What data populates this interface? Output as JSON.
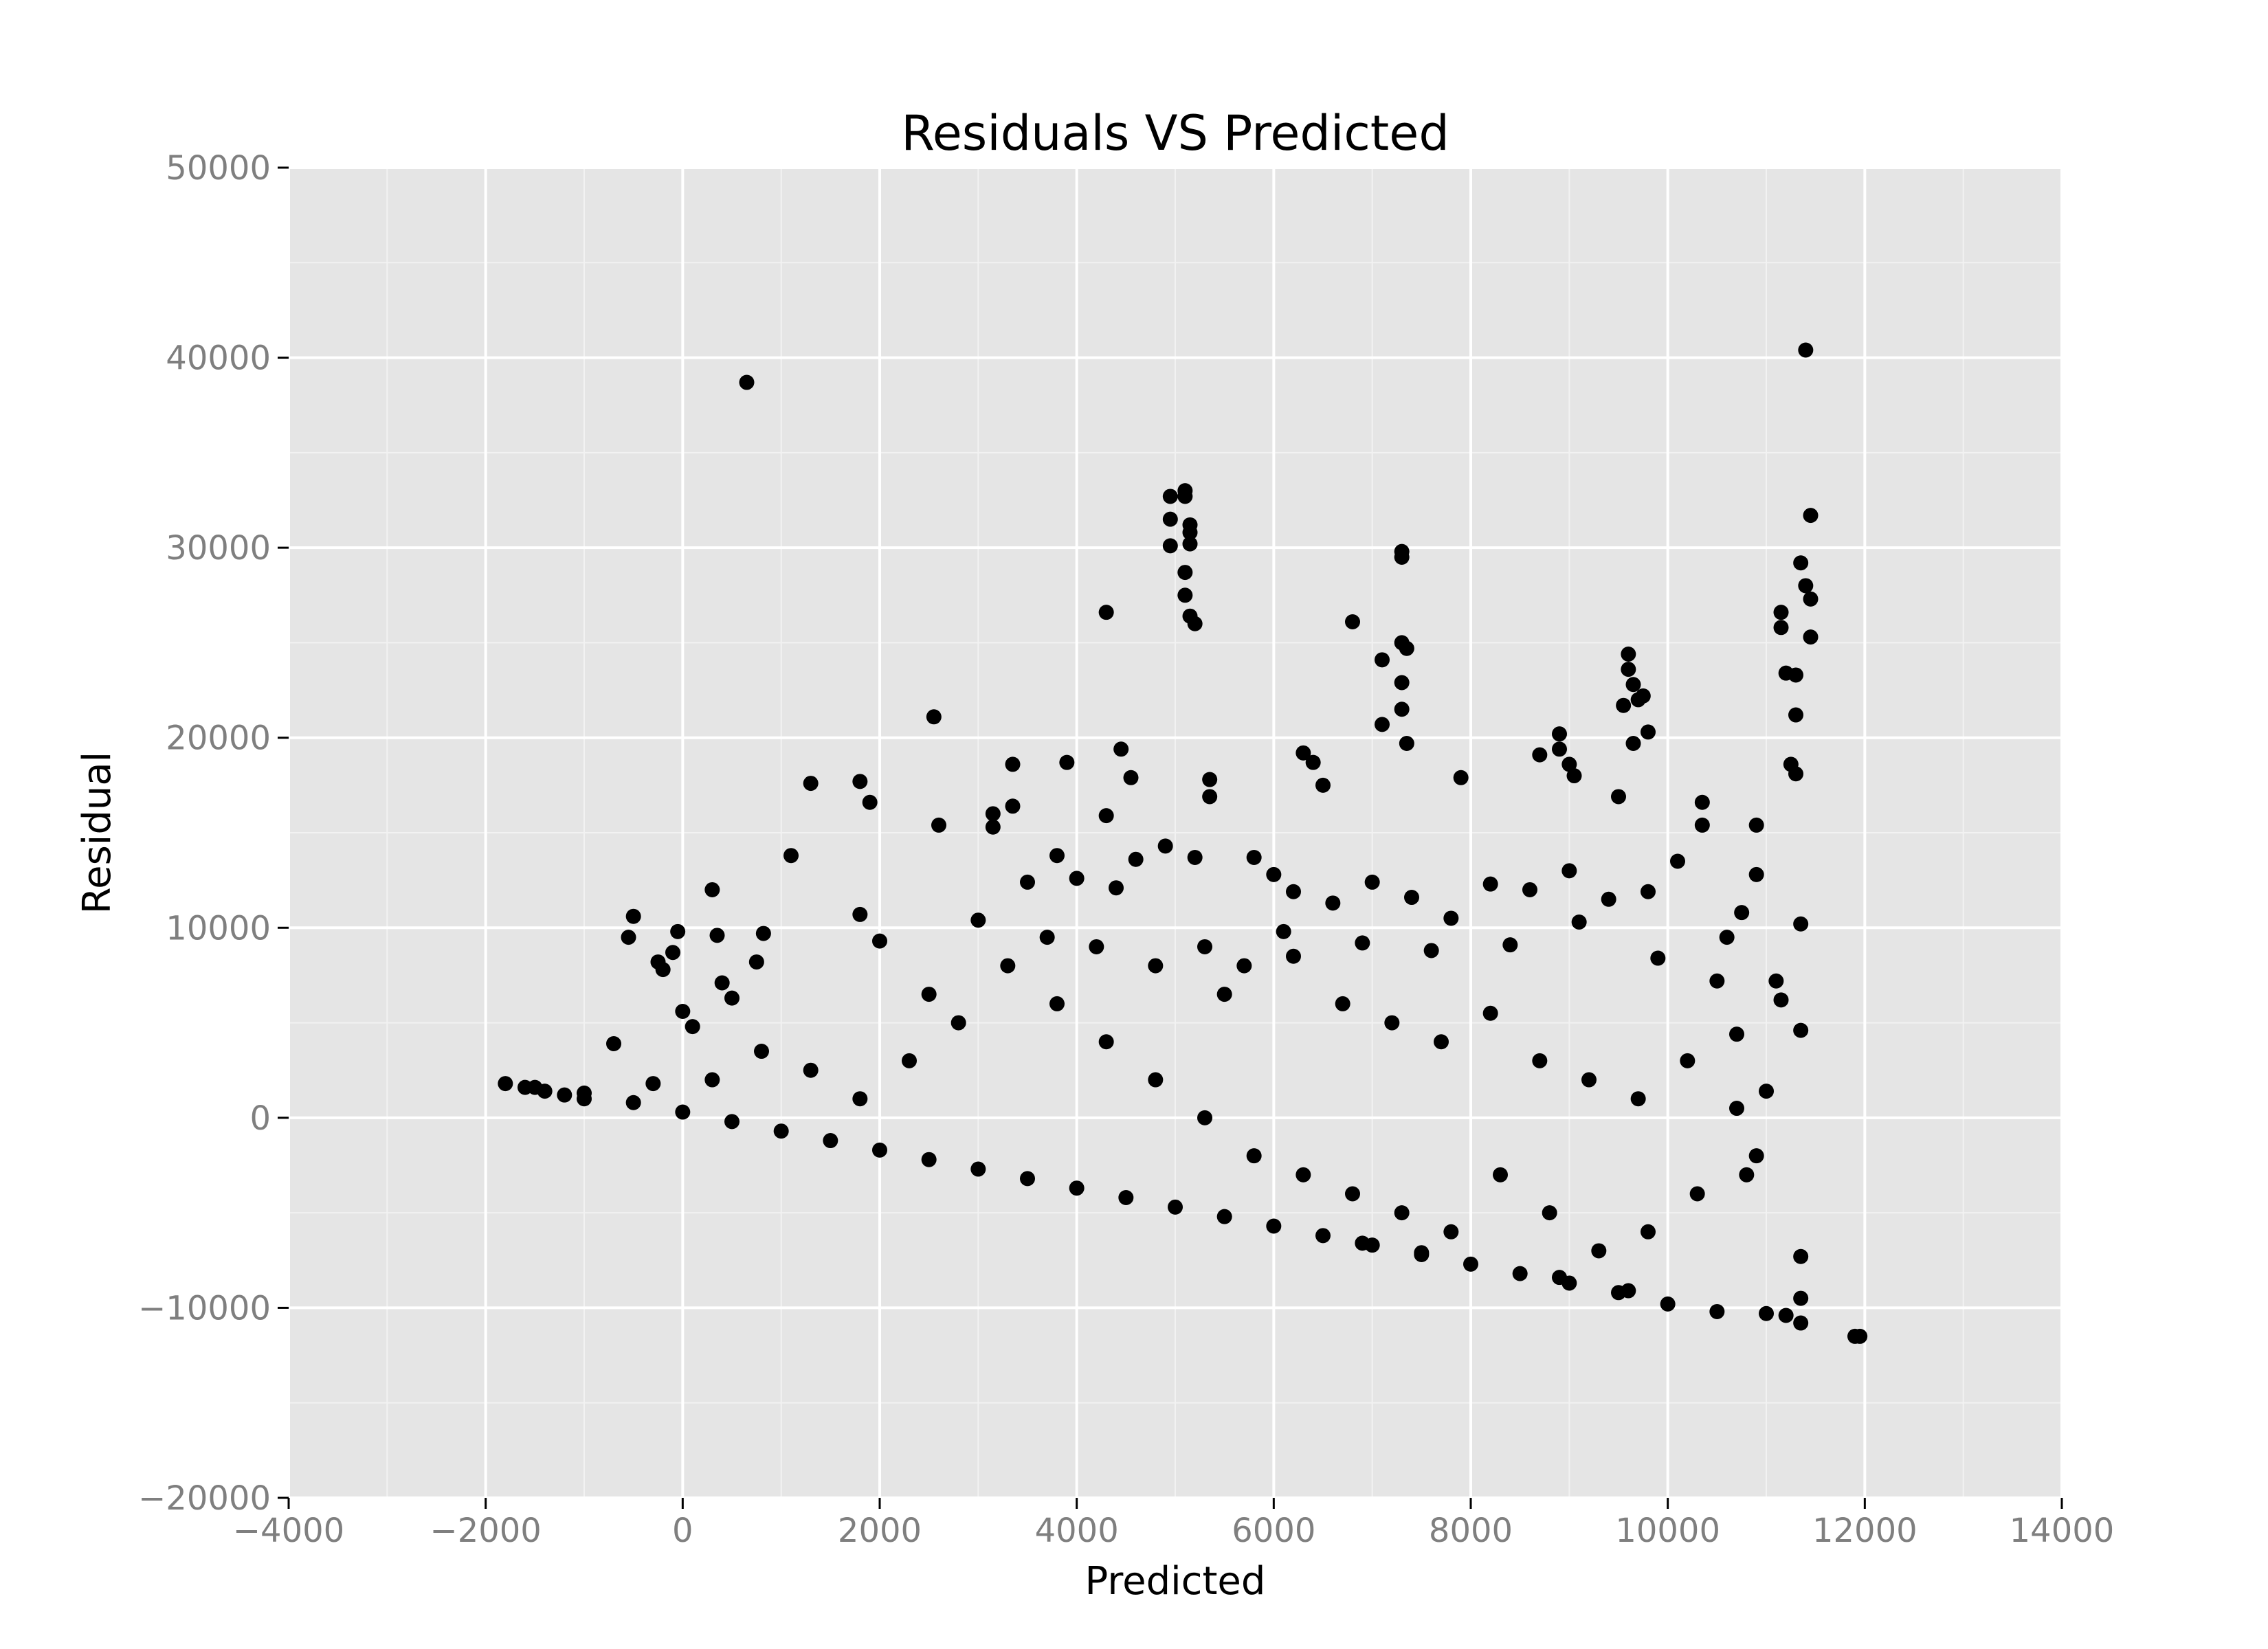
{
  "chart_data": {
    "type": "scatter",
    "title": "Residuals VS Predicted",
    "xlabel": "Predicted",
    "ylabel": "Residual",
    "xlim": [
      -4000,
      14000
    ],
    "ylim": [
      -20000,
      50000
    ],
    "xticks": [
      -4000,
      -2000,
      0,
      2000,
      4000,
      6000,
      8000,
      10000,
      12000,
      14000
    ],
    "yticks": [
      -20000,
      -10000,
      0,
      10000,
      20000,
      30000,
      40000,
      50000
    ],
    "xtick_labels": [
      "−4000",
      "−2000",
      "0",
      "2000",
      "4000",
      "6000",
      "8000",
      "10000",
      "12000",
      "14000"
    ],
    "ytick_labels": [
      "−20000",
      "−10000",
      "0",
      "10000",
      "20000",
      "30000",
      "40000",
      "50000"
    ],
    "grid": true,
    "legend": "none",
    "colors": {
      "panel": "#e5e5e5",
      "grid": "#ffffff",
      "points": "#000000",
      "tick_text": "#7f7f7f"
    },
    "points": [
      [
        -1800,
        1800
      ],
      [
        -1600,
        1600
      ],
      [
        -1400,
        1400
      ],
      [
        -1200,
        1200
      ],
      [
        -1000,
        1000
      ],
      [
        -700,
        3900
      ],
      [
        -500,
        10600
      ],
      [
        -550,
        9500
      ],
      [
        -250,
        8200
      ],
      [
        -200,
        7800
      ],
      [
        -100,
        8700
      ],
      [
        -50,
        9800
      ],
      [
        0,
        5600
      ],
      [
        100,
        4800
      ],
      [
        300,
        12000
      ],
      [
        350,
        9600
      ],
      [
        400,
        7100
      ],
      [
        500,
        6300
      ],
      [
        650,
        38700
      ],
      [
        750,
        8200
      ],
      [
        820,
        9700
      ],
      [
        1100,
        13800
      ],
      [
        1300,
        17600
      ],
      [
        1800,
        17700
      ],
      [
        1900,
        16600
      ],
      [
        1800,
        10700
      ],
      [
        2000,
        9300
      ],
      [
        2550,
        21100
      ],
      [
        2600,
        15400
      ],
      [
        3150,
        16000
      ],
      [
        3150,
        15300
      ],
      [
        3350,
        18600
      ],
      [
        3350,
        16400
      ],
      [
        3900,
        18700
      ],
      [
        4300,
        26600
      ],
      [
        4300,
        15900
      ],
      [
        4450,
        19400
      ],
      [
        4550,
        17900
      ],
      [
        4950,
        32700
      ],
      [
        4950,
        31500
      ],
      [
        4950,
        30100
      ],
      [
        5100,
        33000
      ],
      [
        5100,
        32700
      ],
      [
        5100,
        28700
      ],
      [
        5100,
        27500
      ],
      [
        5150,
        31200
      ],
      [
        5150,
        30800
      ],
      [
        5150,
        30200
      ],
      [
        5150,
        26400
      ],
      [
        5200,
        26000
      ],
      [
        5350,
        17800
      ],
      [
        5350,
        16900
      ],
      [
        6300,
        19200
      ],
      [
        6400,
        18700
      ],
      [
        6500,
        17500
      ],
      [
        6800,
        26100
      ],
      [
        7100,
        24100
      ],
      [
        7100,
        20700
      ],
      [
        7300,
        29800
      ],
      [
        7300,
        29500
      ],
      [
        7300,
        25000
      ],
      [
        7350,
        24700
      ],
      [
        7300,
        22900
      ],
      [
        7300,
        21500
      ],
      [
        7350,
        19700
      ],
      [
        7900,
        17900
      ],
      [
        8900,
        20200
      ],
      [
        8900,
        19400
      ],
      [
        8700,
        19100
      ],
      [
        9000,
        18600
      ],
      [
        9050,
        18000
      ],
      [
        9600,
        24400
      ],
      [
        9600,
        23600
      ],
      [
        9650,
        22800
      ],
      [
        9700,
        22000
      ],
      [
        9550,
        21700
      ],
      [
        9750,
        22200
      ],
      [
        9800,
        20300
      ],
      [
        9650,
        19700
      ],
      [
        9500,
        16900
      ],
      [
        11400,
        40400
      ],
      [
        11450,
        31700
      ],
      [
        11350,
        29200
      ],
      [
        11400,
        28000
      ],
      [
        11450,
        27300
      ],
      [
        11450,
        25300
      ],
      [
        11150,
        26600
      ],
      [
        11150,
        25800
      ],
      [
        11200,
        23400
      ],
      [
        11300,
        23300
      ],
      [
        11300,
        21200
      ],
      [
        11250,
        18600
      ],
      [
        11300,
        18100
      ],
      [
        11350,
        10200
      ],
      [
        11350,
        4600
      ],
      [
        11100,
        7200
      ],
      [
        11150,
        6200
      ],
      [
        11000,
        1400
      ],
      [
        11350,
        -7300
      ],
      [
        11900,
        -11500
      ],
      [
        11950,
        -11500
      ],
      [
        11000,
        -10300
      ],
      [
        11200,
        -10400
      ],
      [
        11350,
        -9500
      ],
      [
        11350,
        -10800
      ],
      [
        10500,
        -10200
      ],
      [
        10000,
        -9800
      ],
      [
        9500,
        -9200
      ],
      [
        9000,
        -8700
      ],
      [
        8500,
        -8200
      ],
      [
        8000,
        -7700
      ],
      [
        7500,
        -7200
      ],
      [
        7000,
        -6700
      ],
      [
        6500,
        -6200
      ],
      [
        6000,
        -5700
      ],
      [
        5500,
        -5200
      ],
      [
        5000,
        -4700
      ],
      [
        4500,
        -4200
      ],
      [
        4000,
        -3700
      ],
      [
        3500,
        -3200
      ],
      [
        3000,
        -2700
      ],
      [
        2500,
        -2200
      ],
      [
        2000,
        -1700
      ],
      [
        1500,
        -1200
      ],
      [
        1000,
        -700
      ],
      [
        500,
        -200
      ],
      [
        0,
        300
      ],
      [
        -500,
        800
      ],
      [
        -1000,
        1300
      ],
      [
        -1500,
        1600
      ],
      [
        3000,
        10400
      ],
      [
        3500,
        12400
      ],
      [
        3800,
        13800
      ],
      [
        4000,
        12600
      ],
      [
        4400,
        12100
      ],
      [
        4600,
        13600
      ],
      [
        4900,
        14300
      ],
      [
        5200,
        13700
      ],
      [
        5800,
        13700
      ],
      [
        6000,
        12800
      ],
      [
        6200,
        11900
      ],
      [
        6600,
        11300
      ],
      [
        7000,
        12400
      ],
      [
        7400,
        11600
      ],
      [
        7800,
        10500
      ],
      [
        8200,
        12300
      ],
      [
        8600,
        12000
      ],
      [
        9000,
        13000
      ],
      [
        9400,
        11500
      ],
      [
        9800,
        11900
      ],
      [
        10100,
        13500
      ],
      [
        10350,
        16600
      ],
      [
        10350,
        15400
      ],
      [
        10600,
        9500
      ],
      [
        10900,
        15400
      ],
      [
        10900,
        12800
      ],
      [
        10750,
        10800
      ],
      [
        5300,
        9000
      ],
      [
        5700,
        8000
      ],
      [
        6200,
        8500
      ],
      [
        6700,
        6000
      ],
      [
        7200,
        5000
      ],
      [
        7700,
        4000
      ],
      [
        8200,
        5500
      ],
      [
        8700,
        3000
      ],
      [
        9200,
        2000
      ],
      [
        9700,
        1000
      ],
      [
        10200,
        3000
      ],
      [
        10700,
        500
      ],
      [
        10900,
        -2000
      ],
      [
        10300,
        -4000
      ],
      [
        9800,
        -6000
      ],
      [
        9300,
        -7000
      ],
      [
        8800,
        -5000
      ],
      [
        8300,
        -3000
      ],
      [
        7800,
        -6000
      ],
      [
        7300,
        -5000
      ],
      [
        6800,
        -4000
      ],
      [
        6300,
        -3000
      ],
      [
        5800,
        -2000
      ],
      [
        5300,
        0
      ],
      [
        4800,
        2000
      ],
      [
        4300,
        4000
      ],
      [
        3800,
        6000
      ],
      [
        3300,
        8000
      ],
      [
        2800,
        5000
      ],
      [
        2300,
        3000
      ],
      [
        1800,
        1000
      ],
      [
        1300,
        2500
      ],
      [
        800,
        3500
      ],
      [
        300,
        2000
      ],
      [
        -300,
        1800
      ],
      [
        2500,
        6500
      ],
      [
        3700,
        9500
      ],
      [
        4200,
        9000
      ],
      [
        4800,
        8000
      ],
      [
        5500,
        6500
      ],
      [
        6100,
        9800
      ],
      [
        6900,
        9200
      ],
      [
        7600,
        8800
      ],
      [
        8400,
        9100
      ],
      [
        9100,
        10300
      ],
      [
        9900,
        8400
      ],
      [
        10500,
        7200
      ],
      [
        10700,
        4400
      ],
      [
        10800,
        -3000
      ],
      [
        9600,
        -9100
      ],
      [
        8900,
        -8400
      ],
      [
        7500,
        -7100
      ],
      [
        6900,
        -6600
      ]
    ]
  }
}
